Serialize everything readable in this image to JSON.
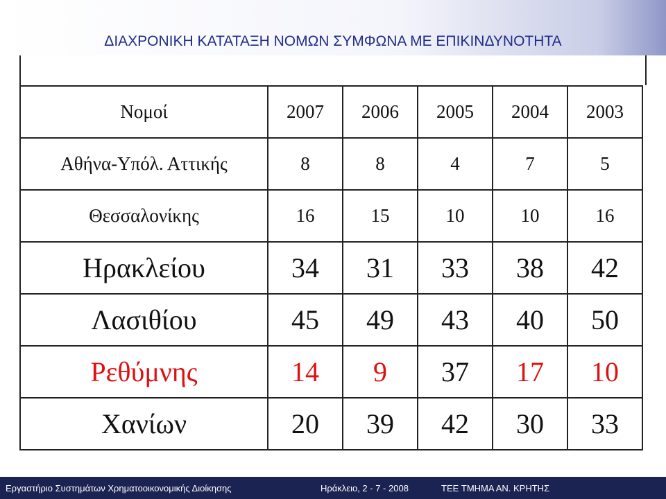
{
  "title": "ΔΙΑΧΡΟΝΙΚΗ ΚΑΤΑΤΑΞΗ ΝΟΜΩΝ ΣΥΜΦΩΝΑ ΜΕ ΕΠΙΚΙΝΔΥΝΟΤΗΤΑ",
  "table": {
    "header": [
      "Νομοί",
      "2007",
      "2006",
      "2005",
      "2004",
      "2003"
    ],
    "rows": [
      [
        "Αθήνα-Υπόλ. Αττικής",
        8,
        8,
        4,
        7,
        5
      ],
      [
        "Θεσσαλονίκης",
        16,
        15,
        10,
        10,
        16
      ],
      [
        "Ηρακλείου",
        34,
        31,
        33,
        38,
        42
      ],
      [
        "Λασιθίου",
        45,
        49,
        43,
        40,
        50
      ],
      [
        "Ρεθύμνης",
        14,
        9,
        37,
        17,
        10
      ],
      [
        "Χανίων",
        20,
        39,
        42,
        30,
        33
      ]
    ]
  },
  "footer": {
    "left": "Εργαστήριο Συστημάτων Χρηματοοικονομικής Διοίκησης",
    "date": "Ηράκλειο, 2 - 7 - 2008",
    "org": "TEE ΤΜΗΜΑ ΑΝ. ΚΡΗΤΗΣ"
  }
}
